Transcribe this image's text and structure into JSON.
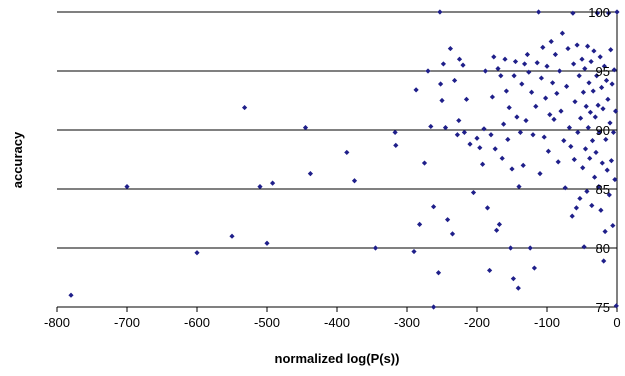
{
  "chart_data": {
    "type": "scatter",
    "title": "",
    "xlabel": "normalized log(P(s))",
    "ylabel": "accuracy",
    "xlim": [
      -800,
      0
    ],
    "ylim": [
      75,
      100
    ],
    "x_ticks": [
      "-800",
      "-700",
      "-600",
      "-500",
      "-400",
      "-300",
      "-200",
      "-100",
      "0"
    ],
    "y_ticks": [
      "75",
      "80",
      "85",
      "90",
      "95",
      "100"
    ],
    "grid": "horizontal",
    "legend": "none",
    "marker_color": "#1f1f8a",
    "points": [
      [
        -780,
        76
      ],
      [
        -700,
        85.2
      ],
      [
        -600,
        79.6
      ],
      [
        -550,
        81
      ],
      [
        -532,
        91.9
      ],
      [
        -510,
        85.2
      ],
      [
        -500,
        80.4
      ],
      [
        -492,
        85.5
      ],
      [
        -445,
        90.2
      ],
      [
        -438,
        86.3
      ],
      [
        -386,
        88.1
      ],
      [
        -375,
        85.7
      ],
      [
        -345,
        80
      ],
      [
        -317,
        89.8
      ],
      [
        -316,
        88.7
      ],
      [
        -290,
        79.7
      ],
      [
        -287,
        93.4
      ],
      [
        -282,
        82
      ],
      [
        -275,
        87.2
      ],
      [
        -270,
        95
      ],
      [
        -266,
        90.3
      ],
      [
        -262,
        83.5
      ],
      [
        -262,
        75
      ],
      [
        -255,
        77.9
      ],
      [
        -253,
        100
      ],
      [
        -252,
        93.9
      ],
      [
        -250,
        92.5
      ],
      [
        -248,
        95.6
      ],
      [
        -245,
        90.2
      ],
      [
        -242,
        82.4
      ],
      [
        -238,
        96.9
      ],
      [
        -235,
        81.2
      ],
      [
        -232,
        94.2
      ],
      [
        -228,
        89.6
      ],
      [
        -226,
        90.8
      ],
      [
        -225,
        96
      ],
      [
        -220,
        95.5
      ],
      [
        -218,
        89.8
      ],
      [
        -215,
        92.6
      ],
      [
        -210,
        88.8
      ],
      [
        -205,
        84.7
      ],
      [
        -200,
        89.3
      ],
      [
        -196,
        88.5
      ],
      [
        -192,
        87.1
      ],
      [
        -190,
        90.1
      ],
      [
        -188,
        95
      ],
      [
        -185,
        83.4
      ],
      [
        -182,
        78.1
      ],
      [
        -180,
        89.6
      ],
      [
        -178,
        92.8
      ],
      [
        -176,
        96.2
      ],
      [
        -174,
        88.4
      ],
      [
        -172,
        81.5
      ],
      [
        -170,
        95.2
      ],
      [
        -168,
        82
      ],
      [
        -166,
        94.6
      ],
      [
        -164,
        87.6
      ],
      [
        -162,
        90.5
      ],
      [
        -160,
        96
      ],
      [
        -158,
        93.3
      ],
      [
        -156,
        89.2
      ],
      [
        -154,
        91.9
      ],
      [
        -152,
        80
      ],
      [
        -150,
        86.7
      ],
      [
        -148,
        77.4
      ],
      [
        -147,
        94.6
      ],
      [
        -145,
        95.8
      ],
      [
        -143,
        91.1
      ],
      [
        -141,
        76.6
      ],
      [
        -140,
        85.2
      ],
      [
        -138,
        89.8
      ],
      [
        -136,
        93.9
      ],
      [
        -134,
        87
      ],
      [
        -132,
        95.6
      ],
      [
        -130,
        90.8
      ],
      [
        -128,
        96.4
      ],
      [
        -126,
        94.9
      ],
      [
        -124,
        80
      ],
      [
        -122,
        93.2
      ],
      [
        -120,
        89.6
      ],
      [
        -118,
        78.3
      ],
      [
        -116,
        92
      ],
      [
        -114,
        95.7
      ],
      [
        -112,
        100
      ],
      [
        -110,
        86.3
      ],
      [
        -108,
        94.4
      ],
      [
        -106,
        97
      ],
      [
        -104,
        89.4
      ],
      [
        -102,
        92.7
      ],
      [
        -100,
        95.4
      ],
      [
        -98,
        88.2
      ],
      [
        -96,
        91.3
      ],
      [
        -94,
        97.5
      ],
      [
        -92,
        94
      ],
      [
        -90,
        90.9
      ],
      [
        -88,
        96.4
      ],
      [
        -86,
        93.1
      ],
      [
        -84,
        87.3
      ],
      [
        -82,
        95
      ],
      [
        -80,
        91.6
      ],
      [
        -78,
        98.2
      ],
      [
        -76,
        89.1
      ],
      [
        -74,
        85.1
      ],
      [
        -72,
        93.7
      ],
      [
        -70,
        96.9
      ],
      [
        -68,
        90.2
      ],
      [
        -66,
        88.6
      ],
      [
        -64,
        82.7
      ],
      [
        -63,
        99.9
      ],
      [
        -62,
        95.6
      ],
      [
        -61,
        87.5
      ],
      [
        -60,
        92.4
      ],
      [
        -58,
        83.4
      ],
      [
        -57,
        97.2
      ],
      [
        -56,
        89.8
      ],
      [
        -54,
        94.6
      ],
      [
        -53,
        84.2
      ],
      [
        -52,
        91
      ],
      [
        -50,
        96
      ],
      [
        -49,
        86.8
      ],
      [
        -48,
        93.2
      ],
      [
        -47,
        80.1
      ],
      [
        -46,
        95.2
      ],
      [
        -45,
        88.4
      ],
      [
        -44,
        92
      ],
      [
        -43,
        84.8
      ],
      [
        -42,
        97.1
      ],
      [
        -41,
        90.2
      ],
      [
        -40,
        94
      ],
      [
        -39,
        87.6
      ],
      [
        -38,
        91.5
      ],
      [
        -37,
        95.8
      ],
      [
        -36,
        83.6
      ],
      [
        -35,
        89.1
      ],
      [
        -34,
        93.3
      ],
      [
        -33,
        96.7
      ],
      [
        -32,
        86
      ],
      [
        -31,
        91.1
      ],
      [
        -30,
        88.1
      ],
      [
        -29,
        94.6
      ],
      [
        -28,
        99.9
      ],
      [
        -27,
        92.1
      ],
      [
        -26,
        85.2
      ],
      [
        -25,
        89.8
      ],
      [
        -24,
        96.2
      ],
      [
        -23,
        83.2
      ],
      [
        -22,
        93.6
      ],
      [
        -21,
        87.2
      ],
      [
        -20,
        91.8
      ],
      [
        -19,
        78.9
      ],
      [
        -18,
        95.4
      ],
      [
        -17,
        81.4
      ],
      [
        -16,
        89.2
      ],
      [
        -15,
        94.2
      ],
      [
        -14,
        86.6
      ],
      [
        -13,
        92.6
      ],
      [
        -12,
        99.9
      ],
      [
        -11,
        84.5
      ],
      [
        -10,
        90.6
      ],
      [
        -9,
        96.8
      ],
      [
        -8,
        87.4
      ],
      [
        -7,
        93.9
      ],
      [
        -6,
        81.9
      ],
      [
        -5,
        89.8
      ],
      [
        -4,
        95.1
      ],
      [
        -3,
        85.8
      ],
      [
        -2,
        91.6
      ],
      [
        -1,
        75.1
      ],
      [
        0,
        100
      ]
    ]
  }
}
